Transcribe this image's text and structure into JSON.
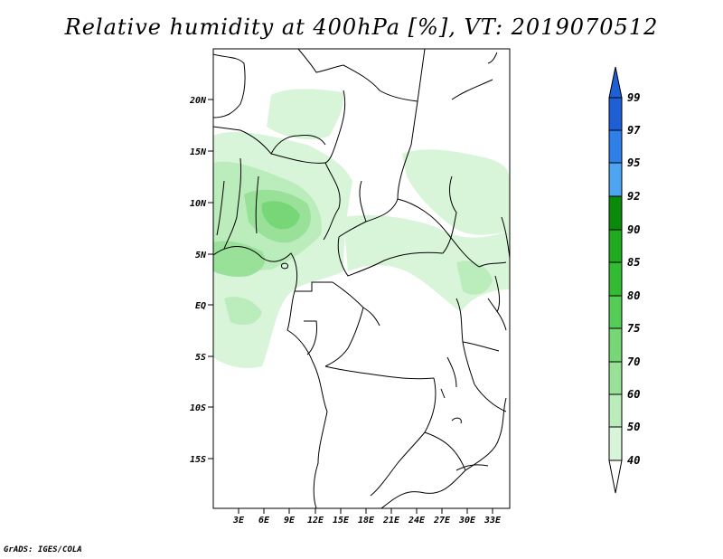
{
  "title": "Relative humidity at 400hPa [%], VT: 2019070512",
  "credit": "GrADS: IGES/COLA",
  "map": {
    "lat_labels": [
      "20N",
      "15N",
      "10N",
      "5N",
      "EQ",
      "5S",
      "10S",
      "15S"
    ],
    "lon_labels": [
      "3E",
      "6E",
      "9E",
      "12E",
      "15E",
      "18E",
      "21E",
      "24E",
      "27E",
      "30E",
      "33E"
    ]
  },
  "colorbar": {
    "labels": [
      "99",
      "97",
      "95",
      "92",
      "90",
      "85",
      "80",
      "75",
      "70",
      "60",
      "50",
      "40"
    ],
    "colors": [
      "#1e5fd6",
      "#2f7fe8",
      "#4ea4f0",
      "#0a8a0a",
      "#1faa1f",
      "#33bb33",
      "#55cc55",
      "#77d777",
      "#99e199",
      "#bbecbb",
      "#d9f5d9",
      "#f0fbf0"
    ]
  }
}
